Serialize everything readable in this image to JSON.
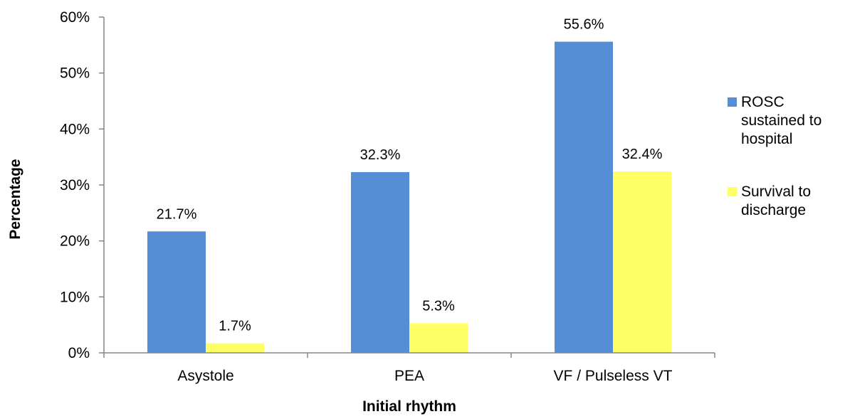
{
  "chart_data": {
    "type": "bar",
    "categories": [
      "Asystole",
      "PEA",
      "VF / Pulseless VT"
    ],
    "series": [
      {
        "name": "ROSC sustained to hospital",
        "legend_lines": [
          "ROSC",
          "sustained to",
          "hospital"
        ],
        "values": [
          21.7,
          32.3,
          55.6
        ],
        "labels": [
          "21.7%",
          "32.3%",
          "55.6%"
        ],
        "color": "#558ED5"
      },
      {
        "name": "Survival to discharge",
        "legend_lines": [
          "Survival to",
          "discharge"
        ],
        "values": [
          1.7,
          5.3,
          32.4
        ],
        "labels": [
          "1.7%",
          "5.3%",
          "32.4%"
        ],
        "color": "#FFFF66"
      }
    ],
    "xlabel": "Initial rhythm",
    "ylabel": "Percentage",
    "ylim": [
      0,
      60
    ],
    "yticks": [
      0,
      10,
      20,
      30,
      40,
      50,
      60
    ],
    "ytick_labels": [
      "0%",
      "10%",
      "20%",
      "30%",
      "40%",
      "50%",
      "60%"
    ],
    "grid": false,
    "legend_position": "right"
  }
}
